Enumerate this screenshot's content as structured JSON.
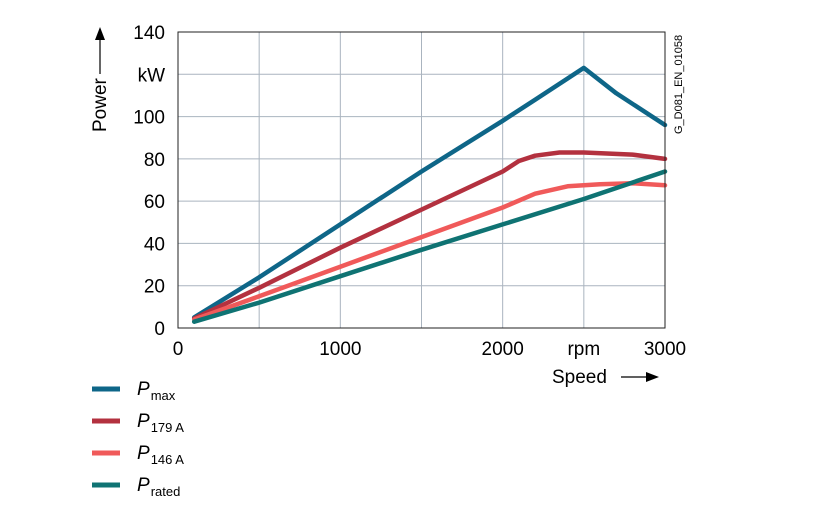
{
  "chart_data": {
    "type": "line",
    "ylabel": "Power",
    "yunit": "kW",
    "xlabel": "Speed",
    "xunit": "rpm",
    "xlim": [
      0,
      3000
    ],
    "ylim": [
      0,
      140
    ],
    "x_ticks": [
      0,
      1000,
      2000,
      3000
    ],
    "y_ticks": [
      0,
      20,
      40,
      60,
      80,
      100,
      140
    ],
    "grid": true,
    "legend_position": "bottom-left",
    "figure_code": "G_D081_EN_01058",
    "series": [
      {
        "name": "P",
        "subscript": "max",
        "color": "#0e6688",
        "x": [
          100,
          500,
          1000,
          1500,
          2000,
          2200,
          2400,
          2500,
          2700,
          3000
        ],
        "y": [
          5,
          24,
          49,
          74,
          98,
          108,
          118,
          123,
          111,
          96
        ]
      },
      {
        "name": "P",
        "subscript": "179 A",
        "color": "#b3313f",
        "x": [
          100,
          500,
          1000,
          1500,
          2000,
          2100,
          2200,
          2350,
          2500,
          2800,
          3000
        ],
        "y": [
          4.5,
          19,
          38,
          56,
          74,
          79,
          81.5,
          83,
          83,
          82,
          80
        ]
      },
      {
        "name": "P",
        "subscript": "146 A",
        "color": "#f05a5a",
        "x": [
          100,
          500,
          1000,
          1500,
          2000,
          2200,
          2400,
          2600,
          2800,
          3000
        ],
        "y": [
          4,
          15,
          29,
          43,
          57,
          63.5,
          67,
          68,
          68.5,
          67.5
        ]
      },
      {
        "name": "P",
        "subscript": "rated",
        "color": "#0f7373",
        "x": [
          100,
          500,
          1000,
          1500,
          2000,
          2500,
          3000
        ],
        "y": [
          3,
          12,
          24.5,
          37,
          49,
          61,
          74
        ]
      }
    ]
  }
}
